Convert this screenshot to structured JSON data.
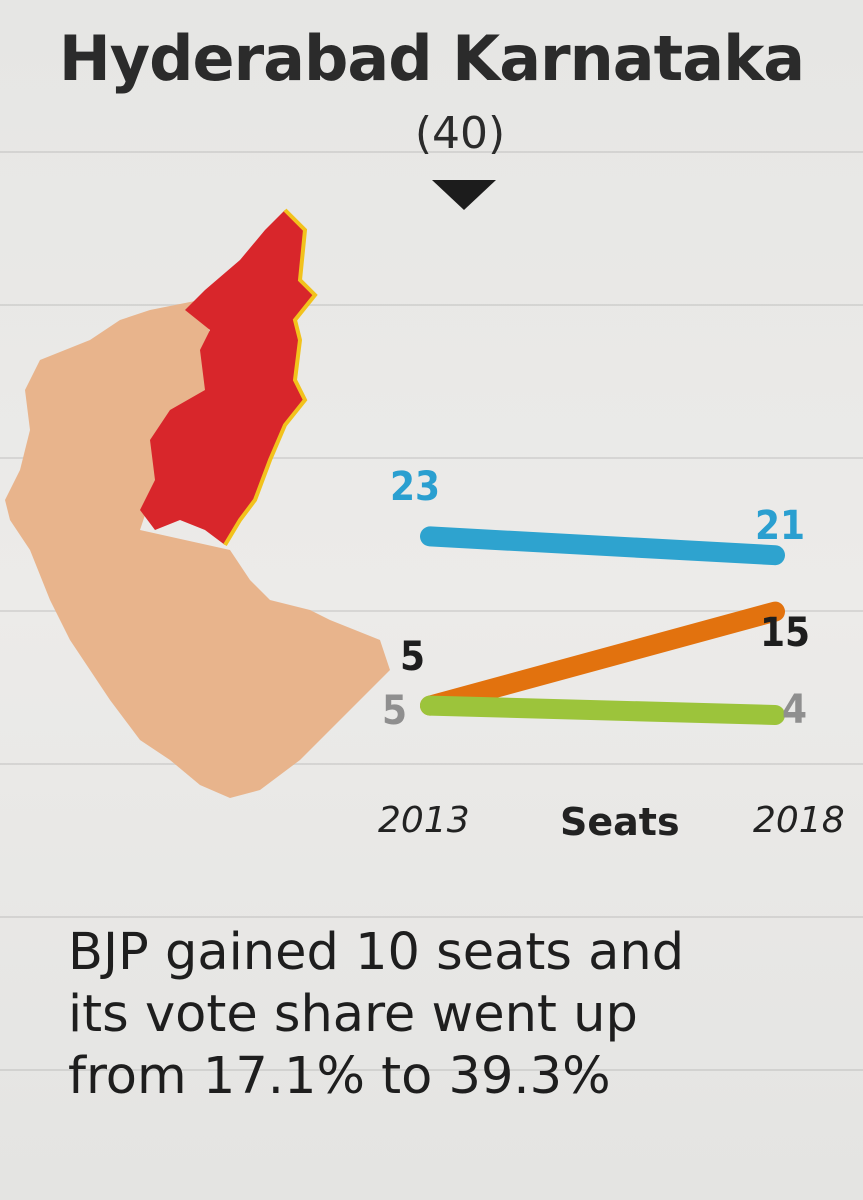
{
  "header": {
    "title": "Hyderabad Karnataka",
    "seats_total": "(40)"
  },
  "colors": {
    "congress": "#2ea3cf",
    "bjp": "#e2720e",
    "jds": "#9cc43b",
    "highlight_region": "#d8262b",
    "state_map": "#e8b48c"
  },
  "chart_data": {
    "type": "line",
    "title": "Seats",
    "x": [
      "2013",
      "2018"
    ],
    "xlabel": "Seats",
    "series": [
      {
        "name": "blue",
        "color": "#2ea3cf",
        "values": [
          23,
          21
        ],
        "labels": [
          "23",
          "21"
        ]
      },
      {
        "name": "orange",
        "color": "#e2720e",
        "values": [
          5,
          15
        ],
        "labels": [
          "5",
          "15"
        ]
      },
      {
        "name": "green",
        "color": "#9cc43b",
        "values": [
          5,
          4
        ],
        "labels": [
          "5",
          "4"
        ]
      }
    ]
  },
  "caption": {
    "line1": "BJP gained 10 seats and",
    "line2": "its vote share went up",
    "line3": "from 17.1% to 39.3%"
  }
}
